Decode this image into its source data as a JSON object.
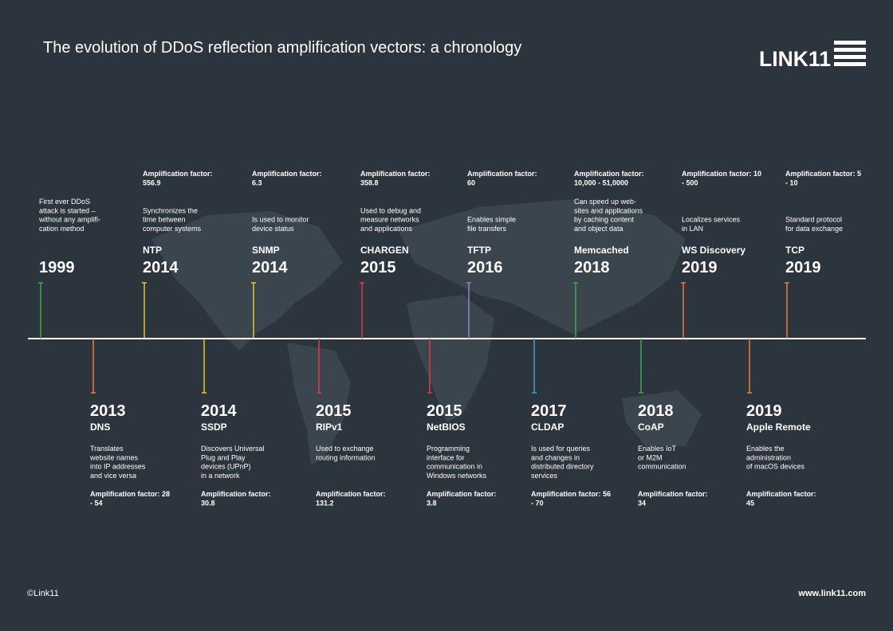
{
  "title": "The evolution of DDoS reflection amplification vectors: a chronology",
  "logo": "LINK11",
  "footer": {
    "copyright": "©Link11",
    "url": "www.link11.com"
  },
  "top_events": [
    {
      "year": "1999",
      "color": "#3fa84a",
      "description": [
        "First ever DDoS",
        "attack is started –",
        "without any amplifi-",
        "cation method"
      ]
    },
    {
      "year": "2014",
      "name": "NTP",
      "color": "#e8c530",
      "amplification": [
        "Amplification factor:",
        "556.9"
      ],
      "description": [
        "Synchronizes the",
        "time between",
        "computer systems"
      ]
    },
    {
      "year": "2014",
      "name": "SNMP",
      "color": "#e8c530",
      "amplification": [
        "Amplification factor:",
        "6.3"
      ],
      "description": [
        "Is used to monitor",
        "device status"
      ]
    },
    {
      "year": "2015",
      "name": "CHARGEN",
      "color": "#e33b40",
      "amplification": [
        "Amplification factor:",
        "358.8"
      ],
      "description": [
        "Used to debug and",
        "measure networks",
        "and applications"
      ]
    },
    {
      "year": "2016",
      "name": "TFTP",
      "color": "#8c88c6",
      "amplification": [
        "Amplification factor:",
        "60"
      ],
      "description": [
        "Enables simple",
        "file transfers"
      ]
    },
    {
      "year": "2018",
      "name": "Memcached",
      "color": "#3fa84a",
      "amplification": [
        "Amplification factor:",
        "10,000 - 51,0000"
      ],
      "description": [
        "Can speed up web-",
        "sites and applications",
        "by caching content",
        "and object data"
      ]
    },
    {
      "year": "2019",
      "name": "WS Discovery",
      "color": "#e8803e",
      "amplification": [
        "Amplification factor: 10",
        "- 500"
      ],
      "description": [
        "Localizes services",
        "in LAN"
      ]
    },
    {
      "year": "2019",
      "name": "TCP",
      "color": "#e8803e",
      "amplification": [
        "Amplification factor: 5",
        "- 10"
      ],
      "description": [
        "Standard protocol",
        "for data exchange"
      ]
    }
  ],
  "bottom_events": [
    {
      "year": "2013",
      "name": "DNS",
      "color": "#e8803e",
      "description": [
        "Translates",
        "website names",
        "into IP addresses",
        "and vice versa"
      ],
      "amplification": [
        "Amplification factor: 28",
        "- 54"
      ]
    },
    {
      "year": "2014",
      "name": "SSDP",
      "color": "#e8c530",
      "description": [
        "Discovers Universal",
        "Plug and Play",
        "devices (UPnP)",
        "in a network"
      ],
      "amplification": [
        "Amplification factor:",
        "30.8"
      ]
    },
    {
      "year": "2015",
      "name": "RIPv1",
      "color": "#e33b40",
      "description": [
        "Used to exchange",
        "routing information"
      ],
      "amplification": [
        "Amplification factor:",
        "131.2"
      ]
    },
    {
      "year": "2015",
      "name": "NetBIOS",
      "color": "#e33b40",
      "description": [
        "Programming",
        "interface for",
        "communication in",
        "Windows networks"
      ],
      "amplification": [
        "Amplification factor:",
        "3.8"
      ]
    },
    {
      "year": "2017",
      "name": "CLDAP",
      "color": "#3aa2de",
      "description": [
        "Is used for queries",
        "and changes in",
        "distributed directory",
        "services"
      ],
      "amplification": [
        "Amplification factor: 56",
        "- 70"
      ]
    },
    {
      "year": "2018",
      "name": "CoAP",
      "color": "#3fa84a",
      "description": [
        "Enables IoT",
        "or M2M",
        "communication"
      ],
      "amplification": [
        "Amplification factor:",
        "34"
      ]
    },
    {
      "year": "2019",
      "name": "Apple Remote",
      "color": "#e8803e",
      "description": [
        "Enables the",
        "administration",
        "of macOS devices"
      ],
      "amplification": [
        "Amplification factor:",
        "45"
      ]
    }
  ]
}
